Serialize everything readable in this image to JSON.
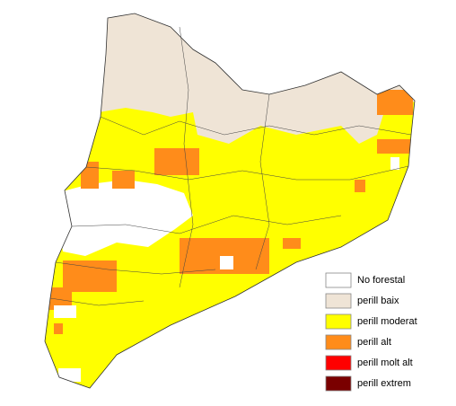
{
  "legend": [
    {
      "label": "No forestal",
      "color": "#ffffff"
    },
    {
      "label": "perill baix",
      "color": "#efe4d6"
    },
    {
      "label": "perill moderat",
      "color": "#ffff00"
    },
    {
      "label": "perill alt",
      "color": "#ff8c1a"
    },
    {
      "label": "perill molt alt",
      "color": "#ff0000"
    },
    {
      "label": "perill extrem",
      "color": "#7a0000"
    }
  ]
}
